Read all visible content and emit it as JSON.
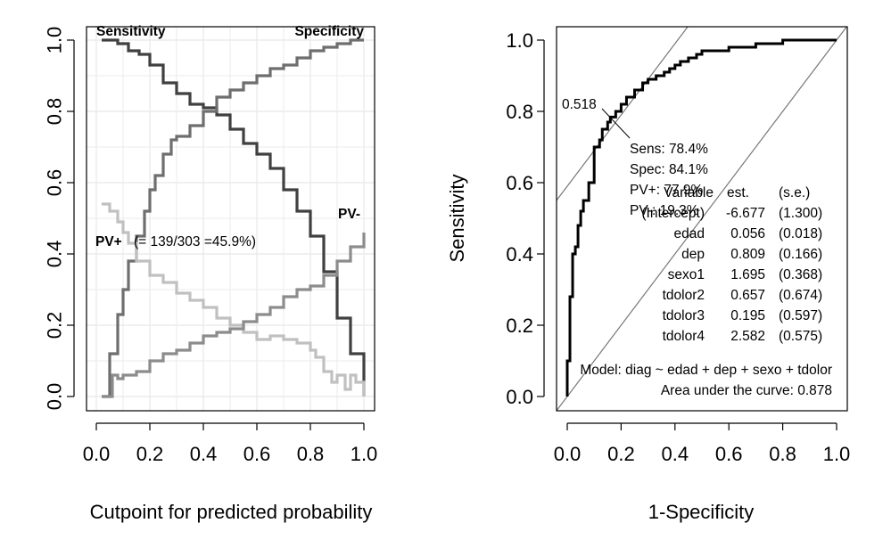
{
  "chart_data": [
    {
      "type": "line",
      "xlabel": "Cutpoint for predicted probability",
      "ylabel": "",
      "xlim": [
        0,
        1
      ],
      "ylim": [
        0,
        1
      ],
      "grid": true,
      "xticks": [
        "0.0",
        "0.2",
        "0.4",
        "0.6",
        "0.8",
        "1.0"
      ],
      "yticks": [
        "0.0",
        "0.2",
        "0.4",
        "0.6",
        "0.8",
        "1.0"
      ],
      "annotations": {
        "sensitivity": "Sensitivity",
        "specificity": "Specificity",
        "pv_minus": "PV-",
        "pv_plus": "PV+",
        "prevalence": "(= 139/303 =45.9%)"
      },
      "series": [
        {
          "name": "Sensitivity",
          "color": "#404040",
          "x": [
            0.02,
            0.05,
            0.08,
            0.12,
            0.16,
            0.2,
            0.25,
            0.3,
            0.35,
            0.4,
            0.45,
            0.5,
            0.55,
            0.6,
            0.65,
            0.7,
            0.75,
            0.8,
            0.85,
            0.9,
            0.95,
            1.0
          ],
          "y": [
            1.0,
            1.0,
            0.99,
            0.97,
            0.96,
            0.93,
            0.88,
            0.85,
            0.82,
            0.81,
            0.79,
            0.75,
            0.71,
            0.68,
            0.64,
            0.58,
            0.52,
            0.45,
            0.35,
            0.22,
            0.12,
            0.0
          ]
        },
        {
          "name": "Specificity",
          "color": "#6e6e6e",
          "x": [
            0.02,
            0.05,
            0.08,
            0.1,
            0.12,
            0.15,
            0.18,
            0.2,
            0.22,
            0.25,
            0.28,
            0.3,
            0.35,
            0.4,
            0.45,
            0.5,
            0.55,
            0.6,
            0.65,
            0.7,
            0.75,
            0.8,
            0.85,
            0.9,
            0.95,
            1.0
          ],
          "y": [
            0.0,
            0.12,
            0.23,
            0.3,
            0.38,
            0.45,
            0.52,
            0.58,
            0.62,
            0.68,
            0.72,
            0.73,
            0.76,
            0.8,
            0.84,
            0.86,
            0.88,
            0.9,
            0.92,
            0.93,
            0.95,
            0.97,
            0.98,
            0.99,
            1.0,
            1.0
          ]
        },
        {
          "name": "PV+",
          "color": "#c0c0c0",
          "x": [
            0.02,
            0.05,
            0.08,
            0.1,
            0.12,
            0.15,
            0.2,
            0.25,
            0.3,
            0.35,
            0.4,
            0.45,
            0.5,
            0.55,
            0.6,
            0.65,
            0.7,
            0.75,
            0.8,
            0.82,
            0.85,
            0.88,
            0.9,
            0.93,
            0.95,
            0.97,
            1.0
          ],
          "y": [
            0.54,
            0.52,
            0.49,
            0.46,
            0.43,
            0.38,
            0.34,
            0.32,
            0.29,
            0.27,
            0.25,
            0.22,
            0.2,
            0.18,
            0.16,
            0.17,
            0.16,
            0.15,
            0.13,
            0.11,
            0.07,
            0.04,
            0.06,
            0.02,
            0.06,
            0.04,
            0.0
          ]
        },
        {
          "name": "PV-",
          "color": "#8c8c8c",
          "x": [
            0.02,
            0.05,
            0.06,
            0.08,
            0.1,
            0.15,
            0.2,
            0.25,
            0.3,
            0.35,
            0.4,
            0.45,
            0.5,
            0.55,
            0.6,
            0.65,
            0.7,
            0.75,
            0.8,
            0.85,
            0.9,
            0.95,
            1.0
          ],
          "y": [
            0.0,
            0.0,
            0.06,
            0.05,
            0.06,
            0.07,
            0.1,
            0.12,
            0.13,
            0.15,
            0.17,
            0.18,
            0.19,
            0.21,
            0.23,
            0.25,
            0.28,
            0.3,
            0.31,
            0.34,
            0.38,
            0.42,
            0.46
          ]
        }
      ]
    },
    {
      "type": "line",
      "xlabel": "1-Specificity",
      "ylabel": "Sensitivity",
      "xlim": [
        0,
        1
      ],
      "ylim": [
        0,
        1
      ],
      "grid": false,
      "xticks": [
        "0.0",
        "0.2",
        "0.4",
        "0.6",
        "0.8",
        "1.0"
      ],
      "yticks": [
        "0.0",
        "0.2",
        "0.4",
        "0.6",
        "0.8",
        "1.0"
      ],
      "roc": {
        "color": "#000000",
        "x": [
          0,
          0,
          0.01,
          0.01,
          0.02,
          0.02,
          0.03,
          0.04,
          0.05,
          0.05,
          0.06,
          0.06,
          0.08,
          0.1,
          0.1,
          0.12,
          0.13,
          0.15,
          0.16,
          0.18,
          0.2,
          0.22,
          0.25,
          0.28,
          0.3,
          0.33,
          0.36,
          0.38,
          0.4,
          0.42,
          0.45,
          0.48,
          0.5,
          0.55,
          0.6,
          0.7,
          0.8,
          0.9,
          1.0
        ],
        "y": [
          0,
          0.1,
          0.18,
          0.28,
          0.35,
          0.4,
          0.42,
          0.48,
          0.5,
          0.52,
          0.52,
          0.55,
          0.6,
          0.65,
          0.7,
          0.72,
          0.75,
          0.77,
          0.784,
          0.8,
          0.82,
          0.84,
          0.86,
          0.88,
          0.89,
          0.9,
          0.91,
          0.92,
          0.93,
          0.94,
          0.95,
          0.96,
          0.97,
          0.97,
          0.98,
          0.99,
          1.0,
          1.0,
          1.0
        ]
      },
      "cut_point": {
        "x": 0.159,
        "y": 0.784
      },
      "reference_lines": [
        {
          "intercept": 0.0,
          "slope": 1
        },
        {
          "intercept": 0.59,
          "slope": 1
        }
      ],
      "cut_label": "0.518",
      "stats": [
        "Sens: 78.4%",
        "Spec: 84.1%",
        "PV+: 77.9%",
        "PV-: 19.3%"
      ],
      "model_table": {
        "headers": [
          "Variable",
          "est.",
          "(s.e.)"
        ],
        "rows": [
          [
            "(Intercept)",
            "-6.677",
            "(1.300)"
          ],
          [
            "edad",
            "0.056",
            "(0.018)"
          ],
          [
            "dep",
            "0.809",
            "(0.166)"
          ],
          [
            "sexo1",
            "1.695",
            "(0.368)"
          ],
          [
            "tdolor2",
            "0.657",
            "(0.674)"
          ],
          [
            "tdolor3",
            "0.195",
            "(0.597)"
          ],
          [
            "tdolor4",
            "2.582",
            "(0.575)"
          ]
        ]
      },
      "model_formula": "Model: diag ~ edad + dep + sexo + tdolor",
      "auc_text": "Area under the curve: 0.878"
    }
  ]
}
